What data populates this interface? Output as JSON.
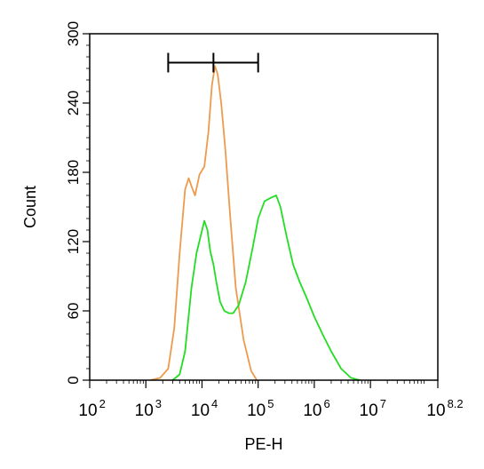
{
  "chart_data": {
    "type": "line",
    "xlabel": "PE-H",
    "ylabel": "Count",
    "x_scale": "log10",
    "xlim": [
      100,
      158489319
    ],
    "ylim": [
      0,
      300
    ],
    "x_ticks": [
      {
        "base": "10",
        "exp": "2"
      },
      {
        "base": "10",
        "exp": "3"
      },
      {
        "base": "10",
        "exp": "4"
      },
      {
        "base": "10",
        "exp": "5"
      },
      {
        "base": "10",
        "exp": "6"
      },
      {
        "base": "10",
        "exp": "7"
      },
      {
        "base": "10",
        "exp": "8.2"
      }
    ],
    "y_ticks": [
      "0",
      "60",
      "120",
      "180",
      "240",
      "300"
    ],
    "gate": {
      "x_start": 2500,
      "x_mid": 16000,
      "x_end": 100000,
      "y": 275
    },
    "series": [
      {
        "color": "#ee9a4d",
        "points": [
          [
            1200,
            0
          ],
          [
            1800,
            2
          ],
          [
            2500,
            10
          ],
          [
            3200,
            45
          ],
          [
            4000,
            110
          ],
          [
            5000,
            165
          ],
          [
            5800,
            175
          ],
          [
            6500,
            168
          ],
          [
            7500,
            160
          ],
          [
            9000,
            178
          ],
          [
            11000,
            185
          ],
          [
            13000,
            215
          ],
          [
            15000,
            255
          ],
          [
            17000,
            272
          ],
          [
            19000,
            265
          ],
          [
            22000,
            240
          ],
          [
            26000,
            200
          ],
          [
            32000,
            140
          ],
          [
            40000,
            80
          ],
          [
            55000,
            35
          ],
          [
            75000,
            8
          ],
          [
            95000,
            0
          ]
        ]
      },
      {
        "color": "#22dd22",
        "points": [
          [
            3000,
            0
          ],
          [
            4000,
            5
          ],
          [
            5000,
            25
          ],
          [
            6500,
            80
          ],
          [
            8000,
            110
          ],
          [
            9500,
            125
          ],
          [
            11000,
            138
          ],
          [
            12500,
            130
          ],
          [
            14000,
            112
          ],
          [
            16000,
            100
          ],
          [
            18000,
            85
          ],
          [
            21000,
            68
          ],
          [
            25000,
            60
          ],
          [
            30000,
            58
          ],
          [
            36000,
            58
          ],
          [
            45000,
            65
          ],
          [
            60000,
            85
          ],
          [
            80000,
            115
          ],
          [
            100000,
            140
          ],
          [
            130000,
            155
          ],
          [
            170000,
            158
          ],
          [
            210000,
            160
          ],
          [
            250000,
            150
          ],
          [
            320000,
            125
          ],
          [
            420000,
            100
          ],
          [
            550000,
            85
          ],
          [
            750000,
            70
          ],
          [
            1000000,
            55
          ],
          [
            1400000,
            40
          ],
          [
            2000000,
            25
          ],
          [
            3000000,
            10
          ],
          [
            4500000,
            2
          ],
          [
            6500000,
            0
          ]
        ]
      }
    ]
  }
}
